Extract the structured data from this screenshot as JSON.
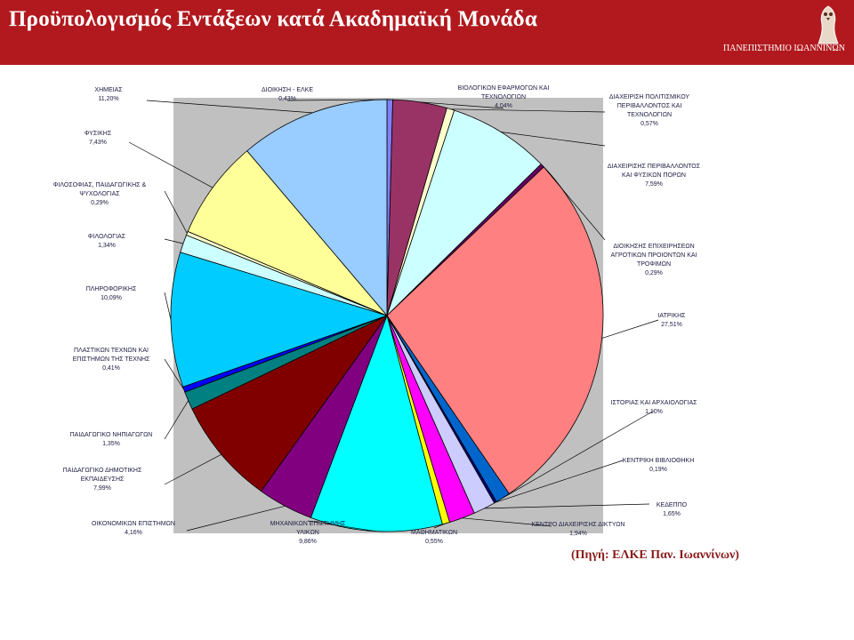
{
  "header": {
    "title": "Προϋπολογισμός Εντάξεων κατά Ακαδημαϊκή Μονάδα",
    "university": "ΠΑΝΕΠΙΣΤΗΜΙΟ ΙΩΑΝΝΙΝΩΝ"
  },
  "source": "(Πηγή: ΕΛΚΕ Παν. Ιωαννίνων)",
  "colors": {
    "header_bg": "#b1191e",
    "plot_bg": "#c0c0c0"
  },
  "chart_data": {
    "type": "pie",
    "slices": [
      {
        "name": "ΔΙΟΙΚΗΣΗ - ΕΛΚΕ",
        "value_label": "0,43%",
        "value": 0.43,
        "color": "#8080ff"
      },
      {
        "name": "ΒΙΟΛΟΓΙΚΩΝ ΕΦΑΡΜΟΓΩΝ ΚΑΙ ΤΕΧΝΟΛΟΓΙΩΝ",
        "value_label": "4,04%",
        "value": 4.04,
        "color": "#993366"
      },
      {
        "name": "ΔΙΑΧΕΙΡΙΣΗ ΠΟΛΙΤΙΣΜΙΚΟΥ ΠΕΡΙΒΑΛΛΟΝΤΟΣ ΚΑΙ ΤΕΧΝΟΛΟΓΙΩΝ",
        "value_label": "0,57%",
        "value": 0.57,
        "color": "#ffffcc"
      },
      {
        "name": "ΔΙΑΧΕΙΡΙΣΗΣ ΠΕΡΙΒΑΛΛΟΝΤΟΣ ΚΑΙ ΦΥΣΙΚΩΝ ΠΟΡΩΝ",
        "value_label": "7,59%",
        "value": 7.59,
        "color": "#ccffff"
      },
      {
        "name": "ΔΙΟΙΚΗΣΗΣ ΕΠΙΧΕΙΡΗΣΕΩΝ ΑΓΡΟΤΙΚΩΝ ΠΡΟΙΟΝΤΩΝ ΚΑΙ ΤΡΟΦΙΜΩΝ",
        "value_label": "0,29%",
        "value": 0.29,
        "color": "#660066"
      },
      {
        "name": "ΙΑΤΡΙΚΗΣ",
        "value_label": "27,51%",
        "value": 27.51,
        "color": "#ff8080"
      },
      {
        "name": "ΙΣΤΟΡΙΑΣ ΚΑΙ ΑΡΧΑΙΟΛΟΓΙΑΣ",
        "value_label": "1,10%",
        "value": 1.1,
        "color": "#0066cc"
      },
      {
        "name": "ΚΕΝΤΡΙΚΗ ΒΙΒΛΙΟΘΗΚΗ",
        "value_label": "0,19%",
        "value": 0.19,
        "color": "#000080"
      },
      {
        "name": "ΚΕΔΕΠΠΟ",
        "value_label": "1,65%",
        "value": 1.65,
        "color": "#ccccff"
      },
      {
        "name": "ΚΕΝΤΡΟ ΔΙΑΧΕΙΡΙΣΗΣ ΔΙΚΤΥΩΝ",
        "value_label": "1,94%",
        "value": 1.94,
        "color": "#ff00ff"
      },
      {
        "name": "ΜΑΘΗΜΑΤΙΚΩΝ",
        "value_label": "0,55%",
        "value": 0.55,
        "color": "#ffff00"
      },
      {
        "name": "ΜΗΧΑΝΙΚΩΝ ΕΠΙΣΤΗΜΗΣ ΥΛΙΚΩΝ",
        "value_label": "9,86%",
        "value": 9.86,
        "color": "#00ffff"
      },
      {
        "name": "ΟΙΚΟΝΟΜΙΚΩΝ ΕΠΙΣΤΗΜΩΝ",
        "value_label": "4,16%",
        "value": 4.16,
        "color": "#800080"
      },
      {
        "name": "ΠΑΙΔΑΓΩΓΙΚΟ ΔΗΜΟΤΙΚΗΣ ΕΚΠΑΙΔΕΥΣΗΣ",
        "value_label": "7,99%",
        "value": 7.99,
        "color": "#800000"
      },
      {
        "name": "ΠΑΙΔΑΓΩΓΙΚΟ ΝΗΠΙΑΓΩΓΩΝ",
        "value_label": "1,35%",
        "value": 1.35,
        "color": "#008080"
      },
      {
        "name": "ΠΛΑΣΤΙΚΩΝ ΤΕΧΝΩΝ ΚΑΙ ΕΠΙΣΤΗΜΩΝ ΤΗΣ ΤΕΧΝΗΣ",
        "value_label": "0,41%",
        "value": 0.41,
        "color": "#0000ff"
      },
      {
        "name": "ΠΛΗΡΟΦΟΡΙΚΗΣ",
        "value_label": "10,09%",
        "value": 10.09,
        "color": "#00ccff"
      },
      {
        "name": "ΦΙΛΟΛΟΓΙΑΣ",
        "value_label": "1,34%",
        "value": 1.34,
        "color": "#ccffff"
      },
      {
        "name": "ΦΙΛΟΣΟΦΙΑΣ, ΠΑΙΔΑΓΩΓΙΚΗΣ & ΨΥΧΟΛΟΓΙΑΣ",
        "value_label": "0,29%",
        "value": 0.29,
        "color": "#ffffcc"
      },
      {
        "name": "ΦΥΣΙΚΗΣ",
        "value_label": "7,43%",
        "value": 7.43,
        "color": "#ffff99"
      },
      {
        "name": "ΧΗΜΕΙΑΣ",
        "value_label": "11,20%",
        "value": 11.2,
        "color": "#99ccff"
      }
    ]
  }
}
